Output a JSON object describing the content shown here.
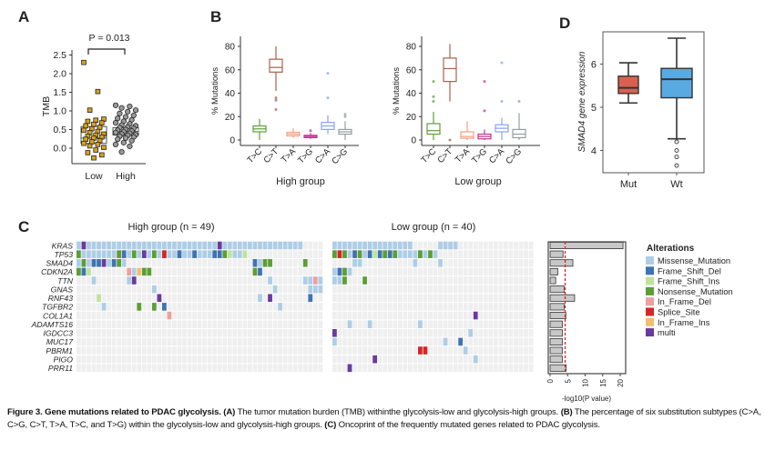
{
  "panel_labels": {
    "a": "A",
    "b": "B",
    "c": "C",
    "d": "D"
  },
  "caption": {
    "title": "Figure 3. Gene mutations related to PDAC glycolysis.",
    "a_tag": "(A)",
    "a_text": "The tumor mutation burden (TMB) withinthe glycolysis-low and glycolysis-high groups.",
    "b_tag": "(B)",
    "b_text": "The percentage of six substitution subtypes (C>A, C>G, C>T, T>A, T>C, and T>G) within the glycolysis-low and glycolysis-high groups.",
    "c_tag": "(C)",
    "c_text": "Oncoprint of the frequently mutated genes related to PDAC glycolysis."
  },
  "chart_data": [
    {
      "id": "A",
      "type": "scatter",
      "ylabel": "TMB",
      "annotation": "P = 0.013",
      "categories": [
        "Low",
        "High"
      ],
      "yticks": [
        "0.0",
        "0.5",
        "1.0",
        "1.5",
        "2.0",
        "2.5"
      ],
      "ylim": [
        -0.3,
        2.6
      ],
      "colors": {
        "Low": "#d9a21b",
        "High": "#9a9a9a"
      },
      "boxes": [
        {
          "name": "Low",
          "q1": 0.13,
          "median": 0.27,
          "q3": 0.58
        },
        {
          "name": "High",
          "q1": 0.35,
          "median": 0.45,
          "q3": 0.55
        }
      ],
      "points": {
        "Low": [
          2.3,
          1.52,
          1.02,
          0.78,
          0.75,
          0.72,
          0.68,
          0.64,
          0.6,
          0.56,
          0.52,
          0.48,
          0.45,
          0.42,
          0.38,
          0.35,
          0.32,
          0.3,
          0.27,
          0.24,
          0.2,
          0.17,
          0.13,
          0.1,
          0.06,
          0.02,
          -0.05,
          -0.12,
          -0.18,
          -0.26
        ],
        "High": [
          1.15,
          1.12,
          1.08,
          1.02,
          0.98,
          0.93,
          0.88,
          0.84,
          0.8,
          0.76,
          0.72,
          0.68,
          0.65,
          0.62,
          0.6,
          0.57,
          0.55,
          0.53,
          0.5,
          0.48,
          0.46,
          0.44,
          0.42,
          0.4,
          0.38,
          0.36,
          0.34,
          0.32,
          0.3,
          0.27,
          0.24,
          0.2,
          0.15,
          0.1,
          0.05,
          -0.1
        ]
      }
    },
    {
      "id": "B-high",
      "type": "box",
      "xlabel": "High group",
      "ylabel": "% Mutations",
      "yticks": [
        "0",
        "20",
        "40",
        "60",
        "80"
      ],
      "ylim": [
        0,
        90
      ],
      "categories": [
        "T>C",
        "C>T",
        "T>A",
        "T>G",
        "C>A",
        "C>G"
      ],
      "colors": [
        "#5f9e3c",
        "#a5634e",
        "#f2a27f",
        "#c4348c",
        "#8aa2f2",
        "#959f9f"
      ],
      "boxes": [
        {
          "min": 0,
          "q1": 7,
          "median": 9.5,
          "q3": 12,
          "max": 18,
          "outliers": []
        },
        {
          "min": 42,
          "q1": 58,
          "median": 62,
          "q3": 69,
          "max": 80,
          "outliers": [
            36,
            34,
            26
          ]
        },
        {
          "min": 2,
          "q1": 3.5,
          "median": 5,
          "q3": 6.5,
          "max": 10,
          "outliers": []
        },
        {
          "min": 1,
          "q1": 2,
          "median": 3,
          "q3": 4,
          "max": 6,
          "outliers": [
            8
          ]
        },
        {
          "min": 5,
          "q1": 9,
          "median": 12,
          "q3": 15,
          "max": 21,
          "outliers": [
            36,
            57
          ]
        },
        {
          "min": 0,
          "q1": 5,
          "median": 7,
          "q3": 9,
          "max": 16,
          "outliers": [
            20,
            22
          ]
        }
      ]
    },
    {
      "id": "B-low",
      "type": "box",
      "xlabel": "Low group",
      "ylabel": "% Mutations",
      "yticks": [
        "0",
        "20",
        "40",
        "60",
        "80"
      ],
      "ylim": [
        0,
        90
      ],
      "categories": [
        "T>C",
        "C>T",
        "T>A",
        "T>G",
        "C>A",
        "C>G"
      ],
      "colors": [
        "#5f9e3c",
        "#a5634e",
        "#f2a27f",
        "#c4348c",
        "#8aa2f2",
        "#959f9f"
      ],
      "boxes": [
        {
          "min": 0,
          "q1": 5,
          "median": 8,
          "q3": 14,
          "max": 24,
          "outliers": [
            33,
            37,
            50
          ]
        },
        {
          "min": 33,
          "q1": 50,
          "median": 61,
          "q3": 70,
          "max": 82,
          "outliers": [
            0
          ]
        },
        {
          "min": 0,
          "q1": 1.5,
          "median": 3,
          "q3": 7,
          "max": 16,
          "outliers": []
        },
        {
          "min": 0,
          "q1": 1,
          "median": 3,
          "q3": 5,
          "max": 9,
          "outliers": [
            25,
            50
          ]
        },
        {
          "min": 0,
          "q1": 7,
          "median": 10,
          "q3": 13,
          "max": 19,
          "outliers": [
            33,
            66
          ]
        },
        {
          "min": 0,
          "q1": 2,
          "median": 5,
          "q3": 9,
          "max": 23,
          "outliers": [
            33
          ]
        }
      ]
    },
    {
      "id": "C",
      "type": "heatmap",
      "groups": [
        {
          "title": "High group (n = 49)",
          "n": 49
        },
        {
          "title": "Low group (n = 40)",
          "n": 40
        }
      ],
      "genes": [
        "KRAS",
        "TP53",
        "SMAD4",
        "CDKN2A",
        "TTN",
        "GNAS",
        "RNF43",
        "TGFBR2",
        "COL1A1",
        "ADAMTS16",
        "IGDCC3",
        "MUC17",
        "PBRM1",
        "PIGO",
        "PRR11"
      ],
      "code_key": {
        ".": "none",
        "M": "Missense_Mutation",
        "D": "Frame_Shift_Del",
        "I": "Frame_Shift_Ins",
        "N": "Nonsense_Mutation",
        "d": "In_Frame_Del",
        "S": "Splice_Site",
        "i": "In_Frame_Ins",
        "X": "multi"
      },
      "matrix_high": [
        "MXMMMMMMMMMMMMMMMMMMMMMMMMMMXMMMMMMMMMMMMMMMM....",
        "NMMMMMMMNDMNMXMNMSMMDMMDMMMDDNIMMI...............",
        "MNMDDXMDNM.........................DMNN......N...",
        "NDI.......dMiNN....................ND............",
        "...M......MX..........................M......MMdM",
        "...............M.......................M......MMM",
        "....I...........X...................M.X.......D..",
        ".....M......N..N.D......................M........",
        "..................d..............................",
        ".................................................",
        ".................................................",
        ".................................................",
        ".................................................",
        ".................................................",
        "................................................."
      ],
      "matrix_low": [
        "MMMMMMMMMMMMMMMM.....MMMM...............",
        "NSNMDNMDIDNDNMMMMNMNM...................",
        "....MM..........M....M..................",
        "MDNM....................................",
        "MMN...N.................................",
        "........................................",
        "........................................",
        "........................................",
        "............................X...........",
        "...M...M.........M......................",
        "X..........................M............",
        "M.....................M..D..............",
        ".................SS.......M.............",
        "........X...................M...........",
        "...X...................................."
      ],
      "bar": {
        "xlabel": "-log10(P value)",
        "xticks": [
          "0",
          "5",
          "10",
          "15",
          "20"
        ],
        "xlim": [
          0,
          21.5
        ],
        "threshold": 4.3,
        "values": [
          20.8,
          3.7,
          6.5,
          2.2,
          1.6,
          4.0,
          7.0,
          4.0,
          4.5,
          3.5,
          3.5,
          3.5,
          3.5,
          3.5,
          4.6
        ]
      },
      "legend": {
        "title": "Alterations",
        "items": [
          {
            "label": "Missense_Mutation",
            "code": "M",
            "color": "#aecde6"
          },
          {
            "label": "Frame_Shift_Del",
            "code": "D",
            "color": "#3f73b3"
          },
          {
            "label": "Frame_Shift_Ins",
            "code": "I",
            "color": "#bfe39c"
          },
          {
            "label": "Nonsense_Mutation",
            "code": "N",
            "color": "#5b9e35"
          },
          {
            "label": "In_Frame_Del",
            "code": "d",
            "color": "#ee9f9f"
          },
          {
            "label": "Splice_Site",
            "code": "S",
            "color": "#d42626"
          },
          {
            "label": "In_Frame_Ins",
            "code": "i",
            "color": "#f3bd6e"
          },
          {
            "label": "multi",
            "code": "X",
            "color": "#6a3a9c"
          }
        ]
      }
    },
    {
      "id": "D",
      "type": "box",
      "ylabel": "SMAD4 gene expression",
      "categories": [
        "Mut",
        "Wt"
      ],
      "yticks": [
        "4",
        "5",
        "6"
      ],
      "ylim": [
        3.55,
        6.75
      ],
      "colors": [
        "#d9604f",
        "#5aaae2"
      ],
      "boxes": [
        {
          "min": 5.1,
          "q1": 5.32,
          "median": 5.45,
          "q3": 5.72,
          "max": 6.03,
          "outliers": []
        },
        {
          "min": 4.27,
          "q1": 5.22,
          "median": 5.65,
          "q3": 5.9,
          "max": 6.6,
          "outliers": [
            4.2,
            4.0,
            3.85,
            3.65
          ]
        }
      ]
    }
  ]
}
